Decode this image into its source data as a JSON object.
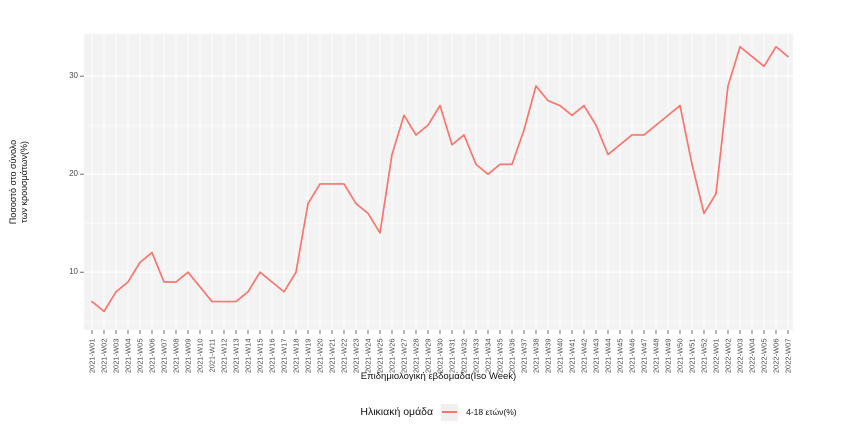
{
  "figure": {
    "background": "#FFFFFF",
    "panel_background": "#F3F3F3",
    "grid_color": "#FFFFFF",
    "axis_text_color": "#4D4D4D",
    "tick_color": "#333333"
  },
  "chart_data": {
    "type": "line",
    "title": "",
    "xlabel": "Επιδημιολογική εβδομάδα(Iso Week)",
    "ylabel": "Ποσοστό στο σύνολο\nτων κρουσμάτων(%)",
    "categories": [
      "2021-W01",
      "2021-W02",
      "2021-W03",
      "2021-W04",
      "2021-W05",
      "2021-W06",
      "2021-W07",
      "2021-W08",
      "2021-W09",
      "2021-W10",
      "2021-W11",
      "2021-W12",
      "2021-W13",
      "2021-W14",
      "2021-W15",
      "2021-W16",
      "2021-W17",
      "2021-W18",
      "2021-W19",
      "2021-W20",
      "2021-W21",
      "2021-W22",
      "2021-W23",
      "2021-W24",
      "2021-W25",
      "2021-W26",
      "2021-W27",
      "2021-W28",
      "2021-W29",
      "2021-W30",
      "2021-W31",
      "2021-W32",
      "2021-W33",
      "2021-W34",
      "2021-W35",
      "2021-W36",
      "2021-W37",
      "2021-W38",
      "2021-W39",
      "2021-W40",
      "2021-W41",
      "2021-W42",
      "2021-W43",
      "2021-W44",
      "2021-W45",
      "2021-W46",
      "2021-W47",
      "2021-W48",
      "2021-W49",
      "2021-W50",
      "2021-W51",
      "2021-W52",
      "2022-W01",
      "2022-W02",
      "2022-W03",
      "2022-W04",
      "2022-W05",
      "2022-W06",
      "2022-W07"
    ],
    "series": [
      {
        "name": "4-18 ετών(%)",
        "color": "#F8766D",
        "values": [
          7,
          6,
          8,
          9,
          11,
          12,
          9,
          9,
          10,
          8.5,
          7,
          7,
          7,
          8,
          10,
          9,
          8,
          10,
          17,
          19,
          19,
          19,
          17,
          16,
          14,
          22,
          26,
          24,
          25,
          27,
          23,
          24,
          21,
          20,
          21,
          21,
          24.5,
          29,
          27.5,
          27,
          26,
          27,
          25,
          22,
          23,
          24,
          24,
          25,
          26,
          27,
          21,
          16,
          18,
          29,
          33,
          32,
          31,
          33,
          32
        ]
      }
    ],
    "y_breaks": [
      10,
      20,
      30
    ],
    "y_minor_breaks": [
      5,
      15,
      25
    ],
    "ylim": [
      4.1,
      34.3
    ],
    "grid": true,
    "legend": {
      "title": "Ηλικιακή ομάδα",
      "position": "bottom",
      "entries": [
        "4-18 ετών(%)"
      ]
    }
  }
}
